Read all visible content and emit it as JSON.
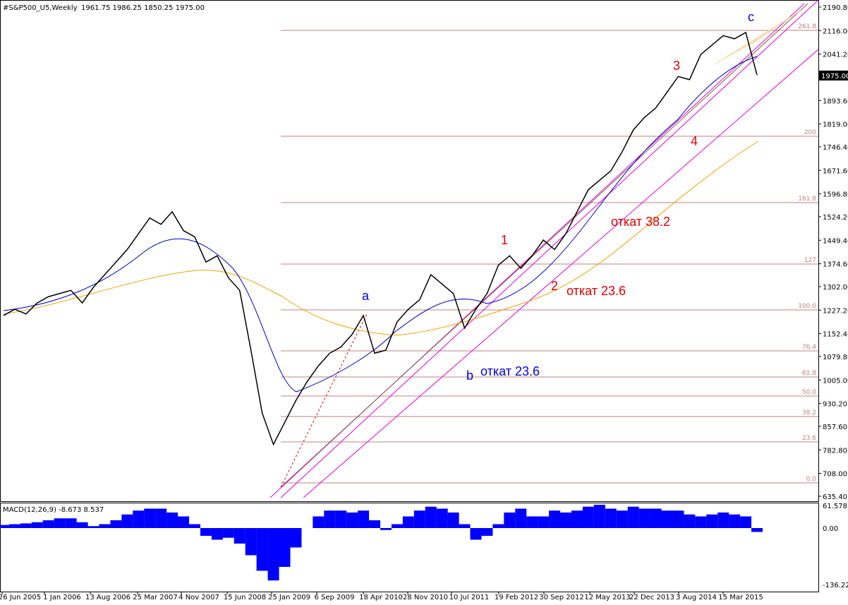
{
  "header": {
    "title": "#S&P500_U5,Weekly",
    "ohlc": "1961.75 1986.25 1850.25 1975.00"
  },
  "price_axis": [
    "2190.80",
    "2116.00",
    "2041.20",
    "1893.60",
    "1819.00",
    "1746.40",
    "1671.60",
    "1596.80",
    "1524.20",
    "1449.40",
    "1374.60",
    "1302.00",
    "1227.20",
    "1152.40",
    "1079.80",
    "1005.00",
    "930.20",
    "857.60",
    "782.80",
    "708.00",
    "635.40"
  ],
  "current_price": "1975.00",
  "fib_levels": [
    "261.8",
    "200",
    "161.8",
    "127",
    "100.0",
    "76.4",
    "61.8",
    "50.0",
    "38.2",
    "23.6",
    "0.0"
  ],
  "annotations": {
    "a": "a",
    "b": "b",
    "c": "c",
    "w1": "1",
    "w2": "2",
    "w3": "3",
    "w4": "4",
    "b_retr": "откат 23.6",
    "w2_retr": "откат 23.6",
    "w4_retr": "откат 38.2"
  },
  "macd": {
    "title": "MACD(12,26,9) -8.673 8.537",
    "axis": [
      "61.578",
      "0.00",
      "-136.223"
    ],
    "values": [
      8,
      10,
      12,
      15,
      20,
      25,
      25,
      15,
      5,
      10,
      20,
      35,
      45,
      50,
      50,
      40,
      30,
      10,
      -20,
      -30,
      -25,
      -40,
      -70,
      -110,
      -135,
      -100,
      -50,
      0,
      30,
      45,
      45,
      40,
      45,
      20,
      -5,
      10,
      30,
      45,
      55,
      50,
      40,
      10,
      -30,
      -20,
      10,
      40,
      50,
      30,
      30,
      45,
      40,
      45,
      55,
      60,
      50,
      45,
      55,
      50,
      50,
      45,
      45,
      35,
      30,
      35,
      40,
      35,
      30,
      -10
    ]
  },
  "price": {
    "values": [
      1210,
      1230,
      1215,
      1250,
      1270,
      1280,
      1290,
      1250,
      1300,
      1340,
      1380,
      1420,
      1470,
      1520,
      1500,
      1540,
      1480,
      1460,
      1380,
      1400,
      1330,
      1290,
      1100,
      900,
      800,
      870,
      940,
      1000,
      1050,
      1090,
      1110,
      1150,
      1210,
      1090,
      1100,
      1190,
      1230,
      1260,
      1340,
      1310,
      1280,
      1170,
      1230,
      1280,
      1370,
      1400,
      1360,
      1400,
      1450,
      1420,
      1470,
      1540,
      1610,
      1640,
      1670,
      1730,
      1800,
      1840,
      1870,
      1920,
      1970,
      1960,
      2040,
      2070,
      2100,
      2090,
      2110,
      1975
    ]
  },
  "dates": [
    "26 Jun 2005",
    "1 Jan 2006",
    "13 Aug 2006",
    "25 Mar 2007",
    "4 Nov 2007",
    "15 Jun 2008",
    "25 Jan 2009",
    "6 Sep 2009",
    "18 Apr 2010",
    "28 Nov 2010",
    "10 Jul 2011",
    "19 Feb 2012",
    "30 Sep 2012",
    "12 May 2013",
    "22 Dec 2013",
    "3 Aug 2014",
    "15 Mar 2015"
  ]
}
